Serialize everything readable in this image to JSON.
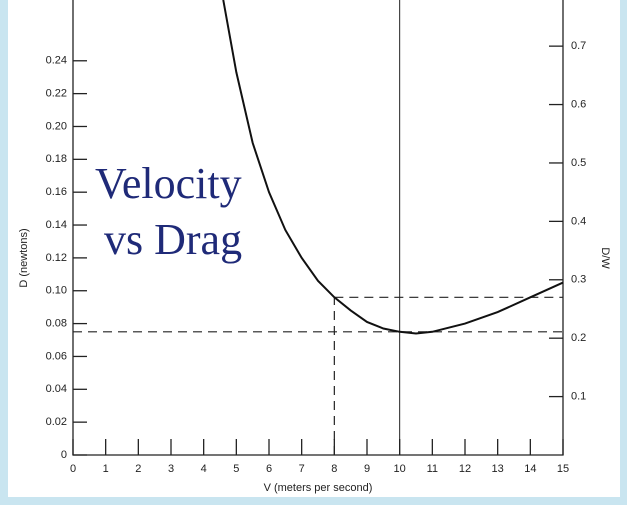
{
  "chart_data": {
    "type": "line",
    "title_lines": [
      "Velocity",
      "vs Drag"
    ],
    "x_label": "V (meters per second)",
    "y_label": "D (newtons)",
    "y2_label": "D/W",
    "xlim": [
      0,
      15
    ],
    "xticks": [
      0,
      1,
      2,
      3,
      4,
      5,
      6,
      7,
      8,
      9,
      10,
      11,
      12,
      13,
      14,
      15
    ],
    "ylim": [
      0,
      0.277
    ],
    "yticks": [
      0,
      0.02,
      0.04,
      0.06,
      0.08,
      {
        "value": 0.1,
        "label": "0.10"
      },
      0.12,
      0.14,
      0.16,
      0.18,
      {
        "value": 0.2,
        "label": "0.20"
      },
      0.22,
      0.24
    ],
    "y2lim": [
      0,
      0.779
    ],
    "y2ticks": [
      0.1,
      0.2,
      0.3,
      0.4,
      0.5,
      0.6,
      0.7
    ],
    "series": [
      {
        "color": "#111111",
        "x": [
          4.6,
          5,
          5.5,
          6,
          6.5,
          7,
          7.5,
          8,
          8.5,
          9,
          9.5,
          10,
          10.5,
          11,
          12,
          13,
          14,
          15
        ],
        "values": [
          0.277,
          0.233,
          0.19,
          0.16,
          0.137,
          0.12,
          0.106,
          0.096,
          0.088,
          0.081,
          0.077,
          0.075,
          0.074,
          0.075,
          0.08,
          0.087,
          0.096,
          0.105
        ]
      }
    ],
    "reference_lines": {
      "vertical_solid": 10,
      "dashed_horizontal": [
        {
          "y": 0.075,
          "x_from": 0,
          "x_to": 15
        },
        {
          "y": 0.096,
          "x_from": 8,
          "x_to": 15
        }
      ],
      "dashed_vertical": [
        {
          "x": 8,
          "y_from": 0,
          "y_to": 0.096
        }
      ]
    }
  }
}
